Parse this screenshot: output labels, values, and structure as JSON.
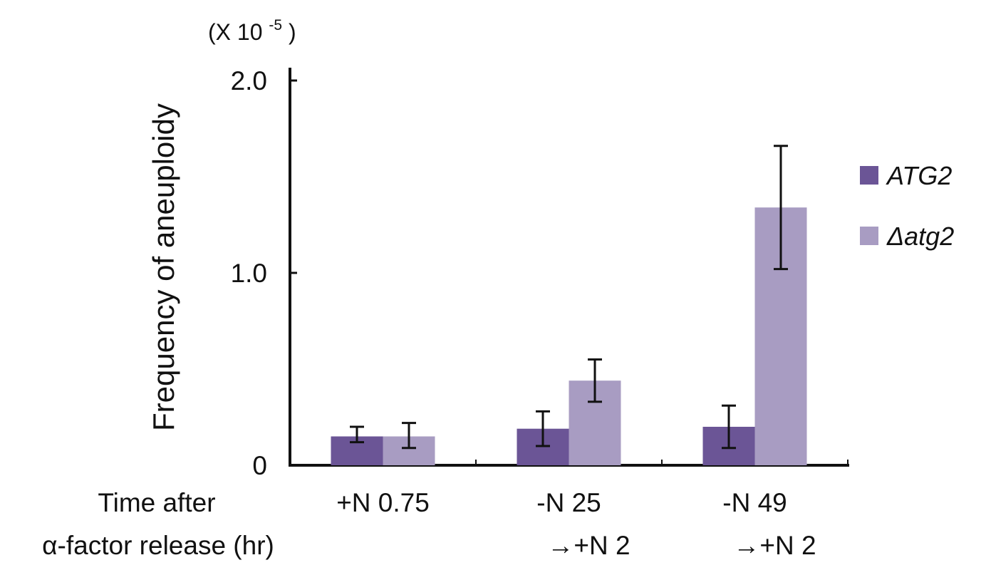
{
  "chart_data": {
    "type": "bar",
    "ylabel": "Frequency of aneuploidy",
    "y_unit_prefix": "(X 10",
    "y_unit_exponent": "-5",
    "y_unit_suffix": ")",
    "ylim": [
      0,
      2.0
    ],
    "yticks": [
      {
        "value": 0,
        "label": "0"
      },
      {
        "value": 1.0,
        "label": "1.0"
      },
      {
        "value": 2.0,
        "label": "2.0"
      }
    ],
    "xlabel_lines": [
      "Time after",
      "α-factor release (hr)"
    ],
    "categories": [
      {
        "line1": "+N 0.75",
        "line2": ""
      },
      {
        "line1": "-N 25",
        "line2": "→+N 2"
      },
      {
        "line1": "-N 49",
        "line2": "→+N 2"
      }
    ],
    "series": [
      {
        "name": "ATG2",
        "color": "#6b5596",
        "values": [
          0.15,
          0.19,
          0.2
        ],
        "err_low": [
          0.12,
          0.1,
          0.09
        ],
        "err_high": [
          0.2,
          0.28,
          0.31
        ]
      },
      {
        "name": "Δatg2",
        "color": "#a89cc2",
        "values": [
          0.15,
          0.44,
          1.34
        ],
        "err_low": [
          0.09,
          0.33,
          1.02
        ],
        "err_high": [
          0.22,
          0.55,
          1.66
        ]
      }
    ],
    "legend_position": "right",
    "grid": false
  }
}
